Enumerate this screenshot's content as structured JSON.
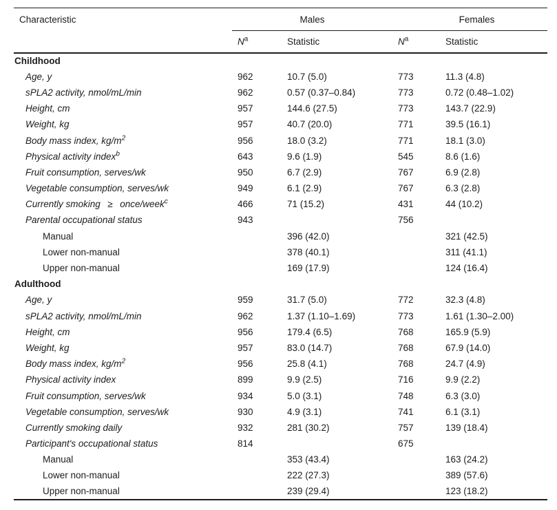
{
  "page": {
    "background_color": "#ffffff",
    "text_color": "#1c1c1c",
    "rule_color": "#1c1c1c"
  },
  "table": {
    "header": {
      "characteristic": "Characteristic",
      "males": "Males",
      "females": "Females",
      "n": "N",
      "n_sup": "a",
      "statistic": "Statistic"
    },
    "sections": [
      {
        "title": "Childhood",
        "rows": [
          {
            "label": "Age, y",
            "indent": 1,
            "italic": true,
            "n1": "962",
            "stat1": "10.7 (5.0)",
            "n2": "773",
            "stat2": "11.3 (4.8)"
          },
          {
            "label": "sPLA2 activity, nmol/mL/min",
            "indent": 1,
            "italic": true,
            "n1": "962",
            "stat1": "0.57 (0.37–0.84)",
            "n2": "773",
            "stat2": "0.72 (0.48–1.02)"
          },
          {
            "label": "Height, cm",
            "indent": 1,
            "italic": true,
            "n1": "957",
            "stat1": "144.6 (27.5)",
            "n2": "773",
            "stat2": "143.7 (22.9)"
          },
          {
            "label": "Weight, kg",
            "indent": 1,
            "italic": true,
            "n1": "957",
            "stat1": "40.7 (20.0)",
            "n2": "771",
            "stat2": "39.5 (16.1)"
          },
          {
            "label": "Body mass index, kg/m",
            "sup": "2",
            "indent": 1,
            "italic": true,
            "n1": "956",
            "stat1": "18.0 (3.2)",
            "n2": "771",
            "stat2": "18.1 (3.0)"
          },
          {
            "label": "Physical activity index",
            "sup": "b",
            "indent": 1,
            "italic": true,
            "n1": "643",
            "stat1": "9.6 (1.9)",
            "n2": "545",
            "stat2": "8.6 (1.6)"
          },
          {
            "label": "Fruit consumption, serves/wk",
            "indent": 1,
            "italic": true,
            "n1": "950",
            "stat1": "6.7 (2.9)",
            "n2": "767",
            "stat2": "6.9 (2.8)"
          },
          {
            "label": "Vegetable consumption, serves/wk",
            "indent": 1,
            "italic": true,
            "n1": "949",
            "stat1": "6.1 (2.9)",
            "n2": "767",
            "stat2": "6.3 (2.8)"
          },
          {
            "label": "Currently smoking  ≥  once/week",
            "sup": "c",
            "indent": 1,
            "italic": true,
            "n1": "466",
            "stat1": "71 (15.2)",
            "n2": "431",
            "stat2": "44 (10.2)"
          },
          {
            "label": "Parental occupational status",
            "indent": 1,
            "italic": true,
            "n1": "943",
            "stat1": "",
            "n2": "756",
            "stat2": ""
          },
          {
            "label": "Manual",
            "indent": 2,
            "italic": false,
            "n1": "",
            "stat1": "396 (42.0)",
            "n2": "",
            "stat2": "321 (42.5)"
          },
          {
            "label": "Lower non-manual",
            "indent": 2,
            "italic": false,
            "n1": "",
            "stat1": "378 (40.1)",
            "n2": "",
            "stat2": "311 (41.1)"
          },
          {
            "label": "Upper non-manual",
            "indent": 2,
            "italic": false,
            "n1": "",
            "stat1": "169 (17.9)",
            "n2": "",
            "stat2": "124 (16.4)"
          }
        ]
      },
      {
        "title": "Adulthood",
        "rows": [
          {
            "label": "Age, y",
            "indent": 1,
            "italic": true,
            "n1": "959",
            "stat1": "31.7 (5.0)",
            "n2": "772",
            "stat2": "32.3 (4.8)"
          },
          {
            "label": "sPLA2 activity, nmol/mL/min",
            "indent": 1,
            "italic": true,
            "n1": "962",
            "stat1": "1.37 (1.10–1.69)",
            "n2": "773",
            "stat2": "1.61 (1.30–2.00)"
          },
          {
            "label": "Height, cm",
            "indent": 1,
            "italic": true,
            "n1": "956",
            "stat1": "179.4 (6.5)",
            "n2": "768",
            "stat2": "165.9 (5.9)"
          },
          {
            "label": "Weight, kg",
            "indent": 1,
            "italic": true,
            "n1": "957",
            "stat1": "83.0 (14.7)",
            "n2": "768",
            "stat2": "67.9 (14.0)"
          },
          {
            "label": "Body mass index, kg/m",
            "sup": "2",
            "indent": 1,
            "italic": true,
            "n1": "956",
            "stat1": "25.8 (4.1)",
            "n2": "768",
            "stat2": "24.7 (4.9)"
          },
          {
            "label": "Physical activity index",
            "indent": 1,
            "italic": true,
            "n1": "899",
            "stat1": "9.9 (2.5)",
            "n2": "716",
            "stat2": "9.9 (2.2)"
          },
          {
            "label": "Fruit consumption, serves/wk",
            "indent": 1,
            "italic": true,
            "n1": "934",
            "stat1": "5.0 (3.1)",
            "n2": "748",
            "stat2": "6.3 (3.0)"
          },
          {
            "label": "Vegetable consumption, serves/wk",
            "indent": 1,
            "italic": true,
            "n1": "930",
            "stat1": "4.9 (3.1)",
            "n2": "741",
            "stat2": "6.1 (3.1)"
          },
          {
            "label": "Currently smoking daily",
            "indent": 1,
            "italic": true,
            "n1": "932",
            "stat1": "281 (30.2)",
            "n2": "757",
            "stat2": "139 (18.4)"
          },
          {
            "label": "Participant's occupational status",
            "indent": 1,
            "italic": true,
            "n1": "814",
            "stat1": "",
            "n2": "675",
            "stat2": ""
          },
          {
            "label": "Manual",
            "indent": 2,
            "italic": false,
            "n1": "",
            "stat1": "353 (43.4)",
            "n2": "",
            "stat2": "163 (24.2)"
          },
          {
            "label": "Lower non-manual",
            "indent": 2,
            "italic": false,
            "n1": "",
            "stat1": "222 (27.3)",
            "n2": "",
            "stat2": "389 (57.6)"
          },
          {
            "label": "Upper non-manual",
            "indent": 2,
            "italic": false,
            "n1": "",
            "stat1": "239 (29.4)",
            "n2": "",
            "stat2": "123 (18.2)"
          }
        ]
      }
    ]
  }
}
